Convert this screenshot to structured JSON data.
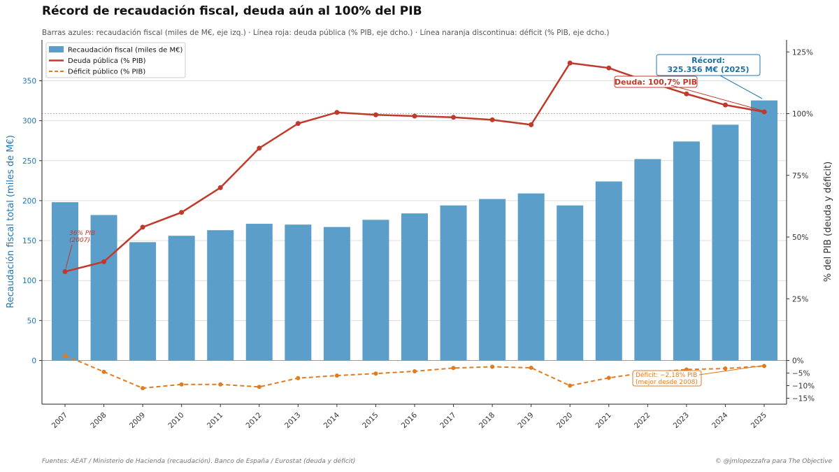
{
  "title": "Récord de recaudación fiscal, deuda aún al 100% del PIB",
  "subtitle": "Barras azules: recaudación fiscal (miles de M€, eje izq.)  ·  Línea roja: deuda pública (% PIB, eje dcho.)  ·  Línea naranja discontinua: déficit (% PIB, eje dcho.)",
  "footer": {
    "sources": "Fuentes: AEAT / Ministerio de Hacienda (recaudación).  Banco de España / Eurostat (deuda y déficit)",
    "credit": "© @jmlopezzafra para The Objective"
  },
  "colors": {
    "bars": "#5b9ec9",
    "debt": "#c0392b",
    "deficit": "#e07b20",
    "left_axis": "#1f77b4"
  },
  "chart_data": {
    "type": "bar",
    "categories": [
      "2007",
      "2008",
      "2009",
      "2010",
      "2011",
      "2012",
      "2013",
      "2014",
      "2015",
      "2016",
      "2017",
      "2018",
      "2019",
      "2020",
      "2021",
      "2022",
      "2023",
      "2024",
      "2025"
    ],
    "series": [
      {
        "name": "Recaudación fiscal (miles de M€)",
        "type": "bar",
        "axis": "left",
        "values": [
          198,
          182,
          148,
          156,
          163,
          171,
          170,
          167,
          176,
          184,
          194,
          202,
          209,
          194,
          224,
          252,
          274,
          295,
          325.356
        ]
      },
      {
        "name": "Deuda pública (% PIB)",
        "type": "line",
        "axis": "right",
        "values": [
          36,
          40,
          54,
          60,
          70,
          86,
          96,
          100.5,
          99.5,
          99,
          98.5,
          97.5,
          95.5,
          120.5,
          118.5,
          113,
          108,
          103.5,
          100.7
        ]
      },
      {
        "name": "Déficit público (% PIB)",
        "type": "line",
        "style": "dashed",
        "axis": "right",
        "values": [
          2,
          -4.5,
          -11,
          -9.5,
          -9.5,
          -10.5,
          -7,
          -6,
          -5.2,
          -4.3,
          -3,
          -2.5,
          -2.9,
          -10,
          -6.9,
          -4.7,
          -3.6,
          -3.2,
          -2.18
        ]
      }
    ],
    "y_left": {
      "label": "Recaudación fiscal total (miles de M€)",
      "ticks": [
        0,
        50,
        100,
        150,
        200,
        250,
        300,
        350
      ],
      "range": [
        -55,
        390
      ]
    },
    "y_right": {
      "label": "% del PIB  (deuda y déficit)",
      "ticks": [
        -15,
        -10,
        -5,
        0,
        25,
        50,
        75,
        100,
        125
      ],
      "tick_labels": [
        "−15%",
        "−10%",
        "−5%",
        "0%",
        "25%",
        "50%",
        "75%",
        "100%",
        "125%"
      ]
    },
    "legend": {
      "placement": "top-left"
    },
    "reference_line": {
      "axis": "right",
      "value": 100,
      "style": "dotted"
    },
    "annotations": {
      "debt_2007": {
        "line1": "36% PIB",
        "line2": "(2007)"
      },
      "record": {
        "line1": "Récord:",
        "line2": "325.356 M€ (2025)"
      },
      "debt_2025": {
        "text": "Deuda: 100,7% PIB"
      },
      "deficit_2025": {
        "line1": "Déficit: −2,18% PIB",
        "line2": "(mejor desde 2008)"
      }
    }
  }
}
